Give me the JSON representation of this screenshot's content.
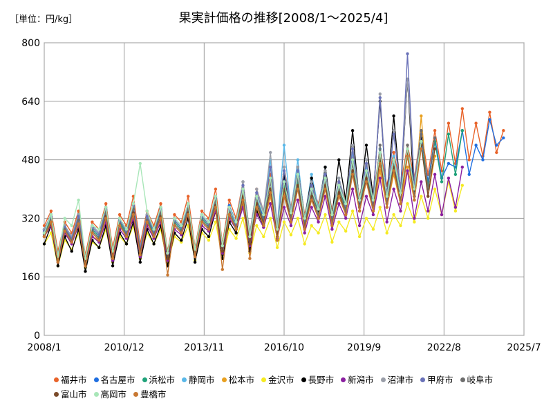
{
  "chart_data": {
    "type": "line",
    "title": "果実計価格の推移[2008/1～2025/4]",
    "unit_label": "［単位：円/kg］",
    "ylim": [
      0,
      800
    ],
    "yticks": [
      0,
      160,
      320,
      480,
      640,
      800
    ],
    "ytick_labels": [
      "0",
      "160",
      "320",
      "480",
      "640",
      "800"
    ],
    "xlim": [
      "2008-01",
      "2025-07"
    ],
    "xticks": [
      "2008-01",
      "2010-12",
      "2013-11",
      "2016-10",
      "2019-09",
      "2022-08",
      "2025-07"
    ],
    "xtick_labels": [
      "2008/1",
      "2010/12",
      "2013/11",
      "2016/10",
      "2019/9",
      "2022/8",
      "2025/7"
    ],
    "grid": true,
    "legend_position": "bottom",
    "sampling": "quarterly values (Jan/Apr/Jul/Oct), estimated from chart",
    "x_start": "2008-01",
    "series": [
      {
        "name": "福井市",
        "color": "#e8632a",
        "values": [
          300,
          340,
          230,
          310,
          280,
          340,
          220,
          310,
          290,
          360,
          240,
          330,
          300,
          380,
          250,
          340,
          300,
          360,
          230,
          330,
          310,
          380,
          240,
          340,
          320,
          400,
          250,
          370,
          320,
          420,
          280,
          400,
          340,
          440,
          300,
          460,
          350,
          460,
          330,
          410,
          360,
          450,
          340,
          420,
          370,
          490,
          380,
          460,
          380,
          510,
          410,
          500,
          410,
          520,
          430,
          560,
          440,
          560,
          450,
          580,
          470,
          620,
          480,
          580,
          490,
          610,
          500,
          560
        ]
      },
      {
        "name": "名古屋市",
        "color": "#1f6ee0",
        "values": [
          290,
          330,
          220,
          300,
          270,
          330,
          210,
          300,
          280,
          350,
          230,
          320,
          290,
          360,
          240,
          330,
          290,
          350,
          225,
          320,
          300,
          360,
          235,
          330,
          310,
          380,
          245,
          355,
          310,
          400,
          270,
          380,
          320,
          420,
          290,
          430,
          340,
          440,
          320,
          400,
          350,
          430,
          330,
          410,
          360,
          470,
          370,
          450,
          370,
          500,
          390,
          480,
          400,
          500,
          420,
          540,
          420,
          540,
          430,
          470,
          460,
          560,
          440,
          520,
          480,
          590,
          520,
          540
        ]
      },
      {
        "name": "浜松市",
        "color": "#1fa27a",
        "values": [
          280,
          320,
          215,
          290,
          265,
          320,
          205,
          290,
          270,
          340,
          225,
          310,
          280,
          350,
          235,
          320,
          280,
          340,
          220,
          310,
          290,
          350,
          230,
          320,
          300,
          370,
          240,
          345,
          300,
          380,
          265,
          370,
          310,
          400,
          285,
          410,
          330,
          420,
          310,
          390,
          340,
          420,
          320,
          400,
          350,
          450,
          360,
          440,
          360,
          480,
          380,
          470,
          390,
          490,
          410,
          520,
          410,
          530,
          420,
          550,
          440,
          560
        ]
      },
      {
        "name": "静岡市",
        "color": "#5ab8e8",
        "values": [
          290,
          330,
          220,
          300,
          270,
          330,
          210,
          300,
          280,
          350,
          230,
          320,
          290,
          360,
          240,
          330,
          290,
          350,
          220,
          320,
          300,
          360,
          235,
          330,
          310,
          380,
          245,
          350,
          300,
          420,
          270,
          380,
          330,
          480,
          300,
          520,
          340,
          480,
          320,
          440,
          350,
          460,
          330,
          430,
          360,
          500,
          370,
          460,
          370,
          510,
          380,
          490,
          390,
          500,
          410,
          520
        ]
      },
      {
        "name": "松本市",
        "color": "#e8a020",
        "values": [
          270,
          310,
          205,
          280,
          255,
          300,
          195,
          270,
          260,
          320,
          215,
          300,
          270,
          330,
          225,
          310,
          270,
          320,
          210,
          300,
          280,
          330,
          220,
          310,
          290,
          350,
          230,
          330,
          290,
          360,
          250,
          350,
          300,
          380,
          270,
          390,
          310,
          400,
          300,
          370,
          320,
          400,
          310,
          390,
          340,
          440,
          340,
          420,
          340,
          450,
          350,
          440,
          360,
          460,
          370,
          600,
          380,
          490
        ]
      },
      {
        "name": "金沢市",
        "color": "#f5ea22",
        "values": [
          250,
          280,
          190,
          260,
          235,
          280,
          185,
          255,
          240,
          290,
          200,
          270,
          250,
          300,
          210,
          280,
          250,
          290,
          195,
          270,
          255,
          300,
          205,
          280,
          260,
          310,
          210,
          290,
          265,
          320,
          225,
          300,
          270,
          320,
          240,
          310,
          275,
          320,
          250,
          300,
          280,
          330,
          255,
          310,
          285,
          340,
          270,
          320,
          290,
          350,
          280,
          330,
          300,
          360,
          310,
          380,
          320,
          400,
          330,
          420,
          340,
          410
        ]
      },
      {
        "name": "長野市",
        "color": "#000000",
        "values": [
          250,
          300,
          190,
          270,
          230,
          290,
          175,
          260,
          240,
          300,
          190,
          280,
          250,
          310,
          200,
          290,
          250,
          300,
          190,
          280,
          260,
          320,
          200,
          290,
          270,
          340,
          210,
          310,
          280,
          370,
          230,
          340,
          300,
          400,
          260,
          440,
          320,
          460,
          320,
          430,
          340,
          460,
          330,
          480,
          370,
          560,
          360,
          520,
          380,
          640,
          380,
          600,
          390,
          700,
          380,
          540
        ]
      },
      {
        "name": "新潟市",
        "color": "#8a1fa0",
        "values": [
          270,
          300,
          200,
          280,
          250,
          300,
          190,
          270,
          255,
          310,
          205,
          290,
          265,
          320,
          215,
          300,
          265,
          310,
          205,
          290,
          275,
          330,
          215,
          300,
          285,
          340,
          225,
          320,
          290,
          350,
          245,
          330,
          295,
          360,
          265,
          350,
          300,
          370,
          280,
          350,
          310,
          380,
          290,
          360,
          320,
          400,
          300,
          380,
          330,
          430,
          310,
          400,
          340,
          450,
          320,
          420,
          340,
          440,
          330,
          430,
          350,
          460
        ]
      },
      {
        "name": "沼津市",
        "color": "#9a9ea8",
        "values": [
          290,
          330,
          220,
          300,
          270,
          330,
          210,
          300,
          280,
          350,
          230,
          320,
          290,
          360,
          240,
          330,
          290,
          350,
          225,
          320,
          300,
          360,
          235,
          330,
          310,
          380,
          245,
          350,
          310,
          420,
          280,
          400,
          340,
          500,
          300,
          460,
          340,
          460,
          320,
          420,
          350,
          450,
          330,
          430,
          360,
          520,
          370,
          480,
          370,
          660,
          380,
          560,
          400,
          700,
          420,
          560
        ]
      },
      {
        "name": "甲府市",
        "color": "#6a72b8",
        "values": [
          285,
          325,
          215,
          295,
          265,
          325,
          205,
          295,
          275,
          345,
          225,
          315,
          285,
          355,
          235,
          325,
          285,
          345,
          220,
          315,
          295,
          355,
          230,
          325,
          305,
          375,
          240,
          345,
          305,
          410,
          270,
          390,
          330,
          460,
          290,
          450,
          335,
          450,
          315,
          410,
          345,
          440,
          325,
          420,
          355,
          510,
          365,
          470,
          365,
          650,
          375,
          550,
          395,
          770,
          410,
          550
        ]
      },
      {
        "name": "岐阜市",
        "color": "#6e6e6e",
        "values": [
          275,
          315,
          210,
          290,
          260,
          315,
          200,
          285,
          265,
          335,
          220,
          305,
          275,
          345,
          230,
          315,
          275,
          335,
          215,
          305,
          285,
          345,
          225,
          315,
          295,
          365,
          235,
          335,
          295,
          390,
          260,
          370,
          315,
          420,
          280,
          420,
          320,
          430,
          300,
          390,
          330,
          420,
          310,
          400,
          340,
          470,
          350,
          440,
          350,
          520,
          360,
          470,
          370,
          520,
          380,
          560,
          400,
          540
        ]
      },
      {
        "name": "富山市",
        "color": "#7a4a2a",
        "values": [
          270,
          305,
          205,
          285,
          255,
          305,
          195,
          280,
          260,
          325,
          215,
          300,
          270,
          335,
          225,
          310,
          270,
          325,
          210,
          300,
          280,
          335,
          220,
          310,
          290,
          355,
          230,
          330,
          290,
          380,
          250,
          360,
          305,
          400,
          270,
          400,
          310,
          410,
          295,
          380,
          320,
          410,
          300,
          390,
          330,
          450,
          340,
          430,
          340,
          490,
          350,
          460,
          360,
          500,
          370,
          520,
          380,
          510
        ]
      },
      {
        "name": "高岡市",
        "color": "#a8e6b8",
        "values": [
          280,
          330,
          215,
          320,
          300,
          370,
          210,
          300,
          290,
          350,
          230,
          320,
          290,
          360,
          470,
          340,
          290,
          350,
          225,
          320,
          300,
          360,
          235,
          330,
          310,
          380,
          245,
          350,
          310,
          400,
          270,
          380,
          330,
          430,
          290,
          420,
          335,
          440,
          320,
          400,
          345,
          430,
          330,
          410,
          360,
          480,
          370,
          450,
          370,
          500,
          380,
          480,
          390,
          510,
          400,
          530
        ]
      },
      {
        "name": "豊橋市",
        "color": "#c87832",
        "values": [
          270,
          310,
          200,
          285,
          255,
          305,
          190,
          280,
          260,
          320,
          210,
          300,
          270,
          330,
          220,
          310,
          270,
          320,
          165,
          300,
          280,
          330,
          215,
          310,
          290,
          350,
          180,
          330,
          290,
          370,
          210,
          350,
          300,
          390,
          260,
          380,
          310,
          400,
          290,
          370,
          320,
          400,
          300,
          380,
          330,
          440,
          340,
          420,
          340,
          470,
          350,
          450,
          360,
          490,
          370,
          510
        ]
      }
    ]
  }
}
